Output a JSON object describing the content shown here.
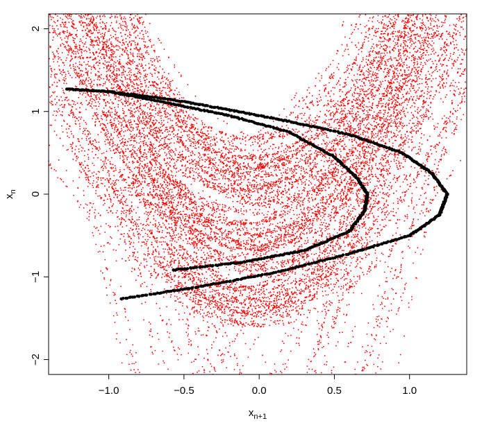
{
  "chart_data": {
    "type": "scatter",
    "title": "",
    "xlabel": "x",
    "xlabel_sub": "n+1",
    "ylabel": "x",
    "ylabel_sub": "n",
    "xlim": [
      -1.4,
      1.38
    ],
    "ylim": [
      -2.18,
      2.18
    ],
    "x_ticks": [
      -1.0,
      -0.5,
      0.0,
      0.5,
      1.0
    ],
    "x_tick_labels": [
      "−1.0",
      "−0.5",
      "0.0",
      "0.5",
      "1.0"
    ],
    "y_ticks": [
      -2,
      -1,
      0,
      1,
      2
    ],
    "y_tick_labels": [
      "−2",
      "−1",
      "0",
      "1",
      "2"
    ],
    "grid": false,
    "legend": "none",
    "series": [
      {
        "color": "#ff0000",
        "marker": "dot",
        "description_of_shape": "basin folds",
        "curves": [
          {
            "x": [
              -1.25,
              -0.95,
              -0.7,
              -0.45,
              -0.25,
              -0.1,
              0.0,
              0.1,
              0.25,
              0.45,
              0.7,
              0.95,
              1.25
            ],
            "y": [
              2.18,
              1.6,
              1.05,
              0.55,
              0.2,
              0.05,
              0.0,
              0.05,
              0.2,
              0.55,
              1.05,
              1.6,
              2.18
            ]
          }
        ]
      },
      {
        "color": "#000000",
        "marker": "circle",
        "attractor": [
          {
            "x": [
              -1.28,
              -1.0,
              -0.6,
              -0.2,
              0.2,
              0.6,
              0.95,
              1.15,
              1.25,
              1.2,
              1.0,
              0.6,
              0.1,
              -0.4,
              -0.93
            ],
            "y": [
              1.27,
              1.24,
              1.15,
              1.02,
              0.88,
              0.72,
              0.5,
              0.25,
              0.0,
              -0.25,
              -0.5,
              -0.72,
              -0.95,
              -1.12,
              -1.27
            ]
          },
          {
            "x": [
              -1.0,
              -0.6,
              -0.2,
              0.2,
              0.5,
              0.65,
              0.72,
              0.7,
              0.6,
              0.3,
              -0.1,
              -0.58
            ],
            "y": [
              1.24,
              1.1,
              0.95,
              0.75,
              0.45,
              0.2,
              0.0,
              -0.2,
              -0.45,
              -0.68,
              -0.82,
              -0.92
            ]
          }
        ]
      }
    ]
  }
}
